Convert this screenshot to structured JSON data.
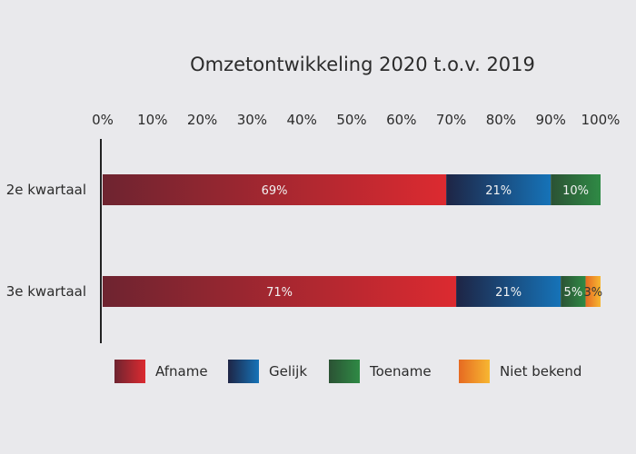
{
  "chart_data": {
    "type": "bar",
    "orientation": "horizontal",
    "stacked": true,
    "title": "Omzetontwikkeling 2020 t.o.v. 2019",
    "xlabel": "",
    "ylabel": "",
    "xlim": [
      0,
      100
    ],
    "x_ticks": [
      "0%",
      "10%",
      "20%",
      "30%",
      "40%",
      "50%",
      "60%",
      "70%",
      "80%",
      "90%",
      "100%"
    ],
    "categories": [
      "2e kwartaal",
      "3e kwartaal"
    ],
    "series": [
      {
        "name": "Afname",
        "values": [
          69,
          71
        ],
        "labels": [
          "69%",
          "71%"
        ],
        "color_dark": "#6e2430",
        "color": "#dc2a30"
      },
      {
        "name": "Gelijk",
        "values": [
          21,
          21
        ],
        "labels": [
          "21%",
          "21%"
        ],
        "color_dark": "#1e2545",
        "color": "#1673b8"
      },
      {
        "name": "Toename",
        "values": [
          10,
          5
        ],
        "labels": [
          "10%",
          "5%"
        ],
        "color_dark": "#2b5234",
        "color": "#2f8a45"
      },
      {
        "name": "Niet bekend",
        "values": [
          0,
          3
        ],
        "labels": [
          "",
          "3%"
        ],
        "color_dark": "#e66a22",
        "color": "#f7b731"
      }
    ],
    "grid": false,
    "legend_position": "bottom"
  }
}
